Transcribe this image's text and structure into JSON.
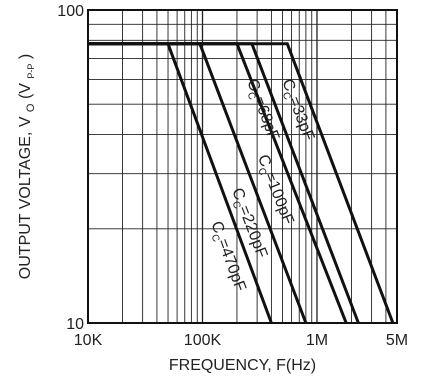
{
  "chart_data": {
    "type": "line",
    "title": "",
    "xlabel": "FREQUENCY, F(Hz)",
    "ylabel": {
      "main": "OUTPUT VOLTAGE, V",
      "sub": "O",
      "paren_open": " (V",
      "paren_sub": "P-P",
      "paren_close": ")"
    },
    "x_scale": "log",
    "y_scale": "log",
    "xlim": [
      10000,
      5000000
    ],
    "ylim": [
      10,
      100
    ],
    "grid": true,
    "x_ticks": [
      {
        "value": 10000,
        "label": "10K"
      },
      {
        "value": 100000,
        "label": "100K"
      },
      {
        "value": 1000000,
        "label": "1M"
      },
      {
        "value": 5000000,
        "label": "5M"
      }
    ],
    "y_ticks": [
      {
        "value": 10,
        "label": "10"
      },
      {
        "value": 100,
        "label": "100"
      }
    ],
    "series": [
      {
        "name": "CC=470pF",
        "label": {
          "main": "C",
          "sub": "C",
          "rest": "=470pF"
        },
        "points": [
          [
            10000,
            78
          ],
          [
            50000,
            78
          ],
          [
            400000,
            10
          ]
        ]
      },
      {
        "name": "CC=220pF",
        "label": {
          "main": "C",
          "sub": "C",
          "rest": "=220pF"
        },
        "points": [
          [
            10000,
            78
          ],
          [
            95000,
            78
          ],
          [
            800000,
            10
          ]
        ]
      },
      {
        "name": "CC=100pF",
        "label": {
          "main": "C",
          "sub": "C",
          "rest": "=100pF"
        },
        "points": [
          [
            10000,
            78
          ],
          [
            200000,
            78
          ],
          [
            1800000,
            10
          ]
        ]
      },
      {
        "name": "CC=68pF",
        "label": {
          "main": "C",
          "sub": "C",
          "rest": "=68pF"
        },
        "points": [
          [
            10000,
            78
          ],
          [
            270000,
            78
          ],
          [
            2300000,
            10
          ]
        ]
      },
      {
        "name": "CC=33pF",
        "label": {
          "main": "C",
          "sub": "C",
          "rest": "=33pF"
        },
        "points": [
          [
            10000,
            78
          ],
          [
            550000,
            78
          ],
          [
            4600000,
            10
          ]
        ]
      }
    ]
  }
}
